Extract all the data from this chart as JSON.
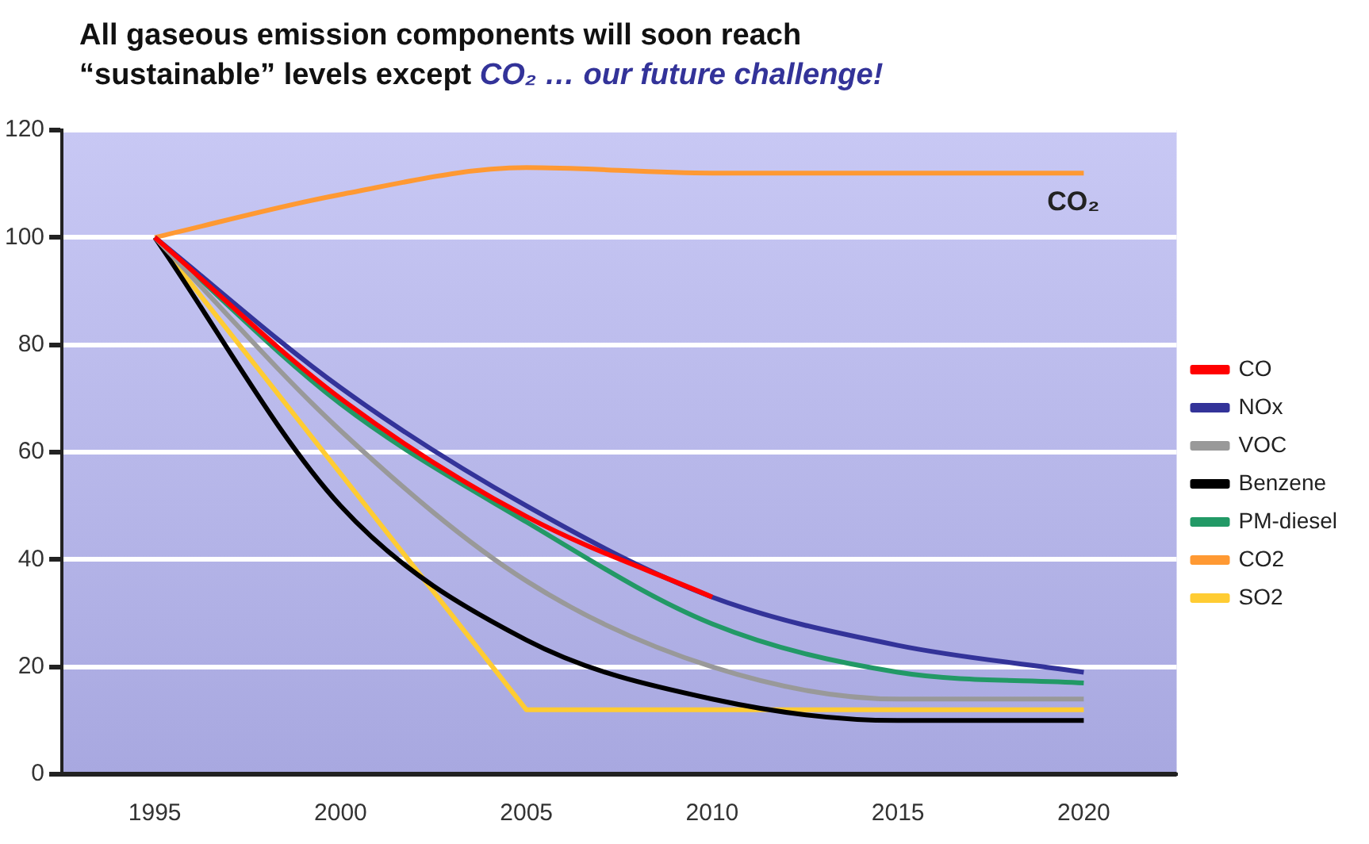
{
  "chart_data": {
    "type": "line",
    "title": "All gaseous emission components will soon reach “sustainable” levels except",
    "subtitle": "CO₂ … our future challenge!",
    "categories": [
      "1995",
      "2000",
      "2005",
      "2010",
      "2015",
      "2020"
    ],
    "series": [
      {
        "name": "CO",
        "color": "#ff0000",
        "values": [
          100,
          70,
          48,
          33,
          null,
          null
        ]
      },
      {
        "name": "NOx",
        "color": "#333399",
        "values": [
          100,
          72,
          50,
          33,
          24,
          19
        ]
      },
      {
        "name": "VOC",
        "color": "#999999",
        "values": [
          100,
          64,
          36,
          20,
          14,
          14
        ]
      },
      {
        "name": "Benzene",
        "color": "#000000",
        "values": [
          100,
          50,
          25,
          14,
          10,
          10
        ]
      },
      {
        "name": "PM-diesel",
        "color": "#229966",
        "values": [
          100,
          69,
          47,
          28,
          19,
          17
        ]
      },
      {
        "name": "CO2",
        "color": "#ff9933",
        "values": [
          100,
          108,
          113,
          112,
          112,
          112
        ]
      },
      {
        "name": "SO2",
        "color": "#ffcc33",
        "values": [
          100,
          56,
          12,
          12,
          12,
          12
        ],
        "line_style": "solid"
      }
    ],
    "annotations": [
      {
        "text": "CO₂",
        "x": "2020",
        "y": 112
      }
    ],
    "ylim": [
      0,
      120
    ],
    "yticks": [
      0,
      20,
      40,
      60,
      80,
      100,
      120
    ],
    "grid": "y",
    "legend": "right",
    "marker": "none"
  }
}
